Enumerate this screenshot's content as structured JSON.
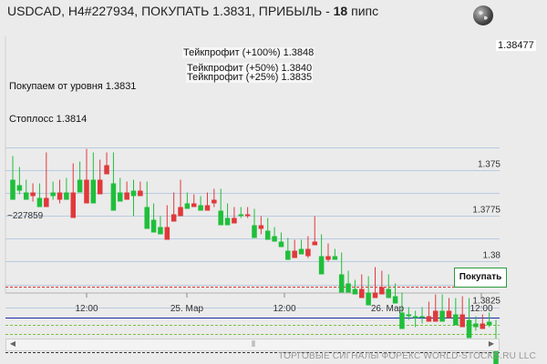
{
  "header": {
    "symbol_info": "USDCAD, H4#227934, ПОКУПАТЬ 1.3831, ПРИБЫЛЬ - ",
    "profit_value": "18",
    "profit_unit": " пипс"
  },
  "levels": {
    "tp100": "Тейкпрофит (+100%) 1.3848",
    "tp50": "Тейкпрофит (+50%) 1.3840",
    "tp25": "Тейкпрофит (+25%) 1.3835",
    "entry": "Покупаем от уровня 1.3831",
    "stop": "Стоплосс 1.3814"
  },
  "current_price": "1.38477",
  "left_label": "~227859",
  "buy_button": {
    "label": "Покупать"
  },
  "footer_text": "ТОРГОВЫЕ СИГНАЛЫ ФОРЕКС WORLD-STOCKS.RU LLC",
  "colors": {
    "bull": "#1fbf3a",
    "bear": "#e0393b",
    "entry_line": "#1b2aa8",
    "stop_line": "#d33",
    "tp_line": "#7ac143",
    "top_line": "#333333",
    "grid": "#b8cbe0",
    "zone": "#6fd08c"
  },
  "chart_data": {
    "type": "candlestick",
    "y_ticks": [
      "1.375",
      "1.3775",
      "1.38",
      "1.3825"
    ],
    "x_ticks": [
      "12:00",
      "25. Мар",
      "12:00",
      "26. Мар",
      "12:00"
    ],
    "ylim": [
      1.3735,
      1.3855
    ],
    "candles": [
      [
        1.3744,
        1.3755,
        1.3742,
        1.3758
      ],
      [
        1.3755,
        1.3758,
        1.3748,
        1.3763
      ],
      [
        1.3758,
        1.3762,
        1.3755,
        1.3765
      ],
      [
        1.3762,
        1.376,
        1.3757,
        1.3767
      ],
      [
        1.376,
        1.3765,
        1.3757,
        1.3768
      ],
      [
        1.3765,
        1.376,
        1.374,
        1.3767
      ],
      [
        1.376,
        1.3762,
        1.3756,
        1.3766
      ],
      [
        1.3762,
        1.3758,
        1.3755,
        1.3768
      ],
      [
        1.3758,
        1.3762,
        1.3754,
        1.3766
      ],
      [
        1.3762,
        1.3748,
        1.3746,
        1.3764
      ],
      [
        1.3748,
        1.3755,
        1.3745,
        1.3758
      ],
      [
        1.3755,
        1.3742,
        1.3738,
        1.3757
      ],
      [
        1.3742,
        1.3755,
        1.374,
        1.3758
      ],
      [
        1.3755,
        1.3747,
        1.3744,
        1.3758
      ],
      [
        1.3747,
        1.3742,
        1.374,
        1.3749
      ],
      [
        1.3742,
        1.3757,
        1.374,
        1.376
      ],
      [
        1.3757,
        1.3762,
        1.3754,
        1.3764
      ],
      [
        1.3762,
        1.3758,
        1.3756,
        1.3764
      ],
      [
        1.3758,
        1.3761,
        1.3755,
        1.3775
      ],
      [
        1.3761,
        1.3758,
        1.3756,
        1.3764
      ],
      [
        1.3758,
        1.377,
        1.3756,
        1.3773
      ],
      [
        1.377,
        1.3777,
        1.3768,
        1.378
      ],
      [
        1.3777,
        1.3781,
        1.3775,
        1.3784
      ],
      [
        1.3781,
        1.3774,
        1.3769,
        1.3786
      ],
      [
        1.3774,
        1.377,
        1.3762,
        1.3777
      ],
      [
        1.377,
        1.3765,
        1.3755,
        1.3772
      ],
      [
        1.3765,
        1.3768,
        1.3762,
        1.3769
      ],
      [
        1.3768,
        1.3766,
        1.3763,
        1.377
      ],
      [
        1.3766,
        1.3769,
        1.3764,
        1.3771
      ],
      [
        1.3769,
        1.3766,
        1.3762,
        1.3772
      ],
      [
        1.3766,
        1.3764,
        1.376,
        1.377
      ],
      [
        1.3764,
        1.3772,
        1.376,
        1.3774
      ],
      [
        1.3772,
        1.3776,
        1.3768,
        1.3779
      ],
      [
        1.3776,
        1.3773,
        1.377,
        1.3778
      ],
      [
        1.3773,
        1.3774,
        1.377,
        1.3776
      ],
      [
        1.3774,
        1.3773,
        1.377,
        1.3776
      ],
      [
        1.3773,
        1.378,
        1.3771,
        1.3783
      ],
      [
        1.378,
        1.3778,
        1.3775,
        1.3785
      ],
      [
        1.3778,
        1.3783,
        1.3776,
        1.3785
      ],
      [
        1.3783,
        1.3786,
        1.3781,
        1.3787
      ],
      [
        1.3786,
        1.3789,
        1.3784,
        1.3791
      ],
      [
        1.3789,
        1.3794,
        1.3787,
        1.3796
      ],
      [
        1.3794,
        1.379,
        1.3788,
        1.3797
      ],
      [
        1.379,
        1.3793,
        1.3788,
        1.3795
      ],
      [
        1.3793,
        1.3789,
        1.3786,
        1.3798
      ],
      [
        1.3789,
        1.3787,
        1.3775,
        1.379
      ],
      [
        1.3787,
        1.3797,
        1.3785,
        1.3799
      ],
      [
        1.3797,
        1.3795,
        1.379,
        1.38
      ],
      [
        1.3795,
        1.3797,
        1.3793,
        1.3799
      ],
      [
        1.3797,
        1.3807,
        1.3795,
        1.3809
      ],
      [
        1.3807,
        1.3812,
        1.3805,
        1.3814
      ],
      [
        1.3812,
        1.3815,
        1.381,
        1.3817
      ],
      [
        1.3815,
        1.381,
        1.3807,
        1.3817
      ],
      [
        1.381,
        1.3817,
        1.3808,
        1.3818
      ],
      [
        1.3817,
        1.3814,
        1.3803,
        1.3819
      ],
      [
        1.3814,
        1.381,
        1.3805,
        1.3817
      ],
      [
        1.381,
        1.3815,
        1.3807,
        1.3817
      ],
      [
        1.3815,
        1.3819,
        1.3812,
        1.3821
      ],
      [
        1.3819,
        1.3828,
        1.3817,
        1.383
      ],
      [
        1.3828,
        1.3829,
        1.3825,
        1.3832
      ],
      [
        1.3829,
        1.383,
        1.3827,
        1.3836
      ],
      [
        1.383,
        1.383,
        1.3825,
        1.3834
      ],
      [
        1.383,
        1.3827,
        1.3822,
        1.3832
      ],
      [
        1.3827,
        1.3821,
        1.3818,
        1.3829
      ],
      [
        1.3821,
        1.3827,
        1.3818,
        1.3829
      ],
      [
        1.3827,
        1.3823,
        1.382,
        1.3829
      ],
      [
        1.3823,
        1.3829,
        1.382,
        1.3831
      ],
      [
        1.3829,
        1.3822,
        1.3819,
        1.3832
      ],
      [
        1.3822,
        1.3832,
        1.382,
        1.3835
      ],
      [
        1.3832,
        1.3834,
        1.383,
        1.3838
      ],
      [
        1.3834,
        1.3831,
        1.3829,
        1.3836
      ],
      [
        1.3831,
        1.3833,
        1.3828,
        1.3836
      ],
      [
        1.3833,
        1.3847,
        1.3832,
        1.385
      ]
    ]
  }
}
